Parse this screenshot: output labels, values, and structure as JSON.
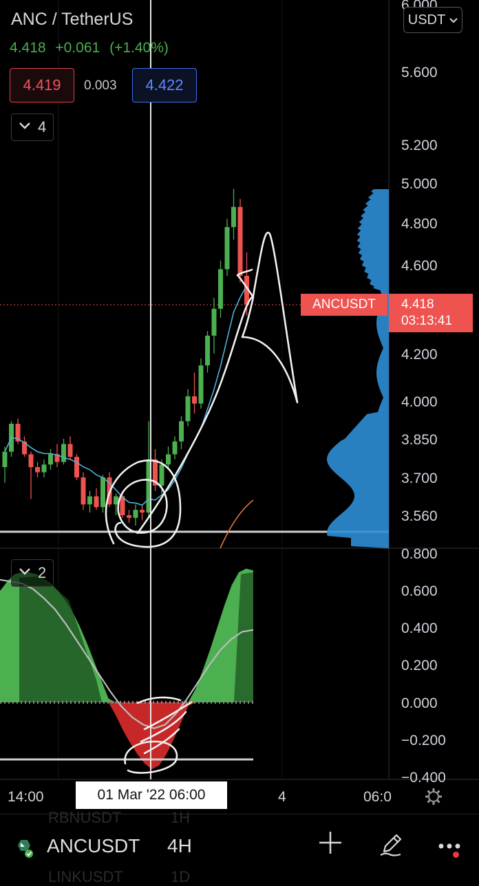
{
  "header": {
    "title": "ANC / TetherUS",
    "last_price": "4.418",
    "change": "+0.061",
    "change_pct": "(+1.40%)",
    "bid": "4.419",
    "spread": "0.003",
    "ask": "4.422"
  },
  "main_indicators": {
    "count": "4"
  },
  "oscillator": {
    "count": "2"
  },
  "currency_selector": {
    "value": "USDT"
  },
  "price_axis": {
    "labels": [
      "6.000",
      "5.600",
      "5.200",
      "5.000",
      "4.800",
      "4.600",
      "4.200",
      "4.000",
      "3.850",
      "3.700",
      "3.560"
    ]
  },
  "osc_axis": {
    "labels": [
      "0.800",
      "0.600",
      "0.400",
      "0.200",
      "0.000",
      "−0.200",
      "−0.400"
    ]
  },
  "price_label": {
    "symbol": "ANCUSDT",
    "price": "4.418",
    "countdown": "03:13:41"
  },
  "time_axis": {
    "labels": [
      "14:00",
      "4",
      "06:0"
    ],
    "cursor_label": "01 Mar '22   06:00"
  },
  "bottom_bar": {
    "symbol": "ANCUSDT",
    "interval": "4H",
    "ghost_above_symbol": "RBNUSDT",
    "ghost_above_interval": "1H",
    "ghost_below_symbol": "LINKUSDT",
    "ghost_below_interval": "1D"
  },
  "colors": {
    "up": "#4caf50",
    "down": "#ef5350",
    "volume_profile": "#2d8ed6",
    "ma_line": "#4fb3d9",
    "osc_positive": "#4caf50",
    "osc_negative": "#c62828"
  },
  "icons": [
    "chevron-down-icon",
    "gear-icon",
    "plus-icon",
    "pen-icon",
    "more-icon",
    "exchange-logo-icon"
  ],
  "chart_data": {
    "type": "candlestick",
    "symbol": "ANCUSDT",
    "interval": "4H",
    "candles": [
      {
        "o": 3.74,
        "h": 3.82,
        "l": 3.68,
        "c": 3.8
      },
      {
        "o": 3.8,
        "h": 3.92,
        "l": 3.78,
        "c": 3.91
      },
      {
        "o": 3.91,
        "h": 3.93,
        "l": 3.83,
        "c": 3.84
      },
      {
        "o": 3.84,
        "h": 3.86,
        "l": 3.78,
        "c": 3.79
      },
      {
        "o": 3.79,
        "h": 3.8,
        "l": 3.62,
        "c": 3.74
      },
      {
        "o": 3.74,
        "h": 3.76,
        "l": 3.7,
        "c": 3.72
      },
      {
        "o": 3.72,
        "h": 3.77,
        "l": 3.7,
        "c": 3.75
      },
      {
        "o": 3.75,
        "h": 3.81,
        "l": 3.73,
        "c": 3.79
      },
      {
        "o": 3.79,
        "h": 3.83,
        "l": 3.74,
        "c": 3.76
      },
      {
        "o": 3.76,
        "h": 3.85,
        "l": 3.75,
        "c": 3.83
      },
      {
        "o": 3.83,
        "h": 3.86,
        "l": 3.77,
        "c": 3.78
      },
      {
        "o": 3.78,
        "h": 3.79,
        "l": 3.69,
        "c": 3.7
      },
      {
        "o": 3.7,
        "h": 3.72,
        "l": 3.58,
        "c": 3.6
      },
      {
        "o": 3.6,
        "h": 3.65,
        "l": 3.57,
        "c": 3.63
      },
      {
        "o": 3.63,
        "h": 3.66,
        "l": 3.58,
        "c": 3.59
      },
      {
        "o": 3.59,
        "h": 3.71,
        "l": 3.57,
        "c": 3.7
      },
      {
        "o": 3.7,
        "h": 3.72,
        "l": 3.59,
        "c": 3.6
      },
      {
        "o": 3.6,
        "h": 3.64,
        "l": 3.56,
        "c": 3.63
      },
      {
        "o": 3.63,
        "h": 3.65,
        "l": 3.55,
        "c": 3.56
      },
      {
        "o": 3.56,
        "h": 3.58,
        "l": 3.53,
        "c": 3.55
      },
      {
        "o": 3.55,
        "h": 3.6,
        "l": 3.52,
        "c": 3.58
      },
      {
        "o": 3.58,
        "h": 3.6,
        "l": 3.54,
        "c": 3.57
      },
      {
        "o": 3.57,
        "h": 3.92,
        "l": 3.55,
        "c": 3.77
      },
      {
        "o": 3.77,
        "h": 3.81,
        "l": 3.65,
        "c": 3.67
      },
      {
        "o": 3.67,
        "h": 3.77,
        "l": 3.64,
        "c": 3.75
      },
      {
        "o": 3.75,
        "h": 3.82,
        "l": 3.73,
        "c": 3.79
      },
      {
        "o": 3.79,
        "h": 3.86,
        "l": 3.77,
        "c": 3.84
      },
      {
        "o": 3.84,
        "h": 3.94,
        "l": 3.81,
        "c": 3.92
      },
      {
        "o": 3.92,
        "h": 4.05,
        "l": 3.9,
        "c": 4.02
      },
      {
        "o": 4.02,
        "h": 4.12,
        "l": 3.95,
        "c": 3.99
      },
      {
        "o": 3.99,
        "h": 4.18,
        "l": 3.97,
        "c": 4.15
      },
      {
        "o": 4.15,
        "h": 4.3,
        "l": 4.12,
        "c": 4.28
      },
      {
        "o": 4.28,
        "h": 4.45,
        "l": 4.2,
        "c": 4.4
      },
      {
        "o": 4.4,
        "h": 4.62,
        "l": 4.36,
        "c": 4.58
      },
      {
        "o": 4.58,
        "h": 4.82,
        "l": 4.55,
        "c": 4.78
      },
      {
        "o": 4.78,
        "h": 4.97,
        "l": 4.72,
        "c": 4.88
      },
      {
        "o": 4.88,
        "h": 4.92,
        "l": 4.52,
        "c": 4.55
      },
      {
        "o": 4.55,
        "h": 4.66,
        "l": 4.37,
        "c": 4.42
      }
    ],
    "current_price": 4.418,
    "ylim": [
      3.52,
      6.0
    ],
    "oscillator": {
      "values": [
        0.6,
        0.65,
        0.69,
        0.7,
        0.7,
        0.69,
        0.67,
        0.64,
        0.6,
        0.55,
        0.49,
        0.41,
        0.32,
        0.22,
        0.12,
        0.02,
        -0.07,
        -0.15,
        -0.22,
        -0.28,
        -0.33,
        -0.36,
        -0.34,
        -0.28,
        -0.2,
        -0.11,
        -0.02,
        0.07,
        0.17,
        0.28,
        0.4,
        0.52,
        0.63,
        0.7,
        0.72,
        0.71
      ],
      "signal": [
        0.66,
        0.65,
        0.64,
        0.61,
        0.56,
        0.5,
        0.42,
        0.33,
        0.24,
        0.15,
        0.06,
        -0.02,
        -0.08,
        -0.12,
        -0.14,
        -0.12,
        -0.06,
        0.02,
        0.11,
        0.2,
        0.28,
        0.34,
        0.38,
        0.39
      ],
      "ylim": [
        -0.4,
        0.8
      ]
    }
  }
}
